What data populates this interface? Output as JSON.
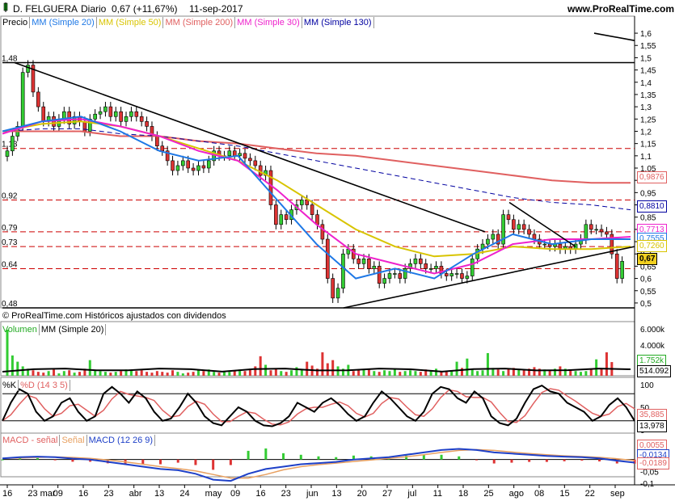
{
  "header": {
    "instrument": "D. FELGUERA",
    "period": "Diario",
    "quote": "0,67 (+11,67%)",
    "date": "11-sep-2017",
    "site": "www.ProRealTime.com"
  },
  "price_panel": {
    "legend": [
      {
        "label": "Precio",
        "color": "#000000"
      },
      {
        "label": "MM (Simple 20)",
        "color": "#1e78e6"
      },
      {
        "label": "MM (Simple 50)",
        "color": "#d8c400"
      },
      {
        "label": "MM (Simple 200)",
        "color": "#e06060"
      },
      {
        "label": "MM (Simple 30)",
        "color": "#ee22cc"
      },
      {
        "label": "MM (Simple 130)",
        "color": "#0000a0"
      }
    ],
    "left_levels": [
      "1,48",
      "1,13",
      "0,92",
      "0,79",
      "0,73",
      "0,64",
      "0,48"
    ],
    "right_ticks": [
      "1,6",
      "1,55",
      "1,5",
      "1,45",
      "1,4",
      "1,35",
      "1,3",
      "1,25",
      "1,2",
      "1,15",
      "1,1",
      "1,05",
      "1",
      "0,95",
      "0,9",
      "0,85",
      "0,8",
      "0,75",
      "0,7",
      "0,65",
      "0,6",
      "0,55",
      "0,5"
    ],
    "value_tags": [
      {
        "text": "0,9876",
        "color": "#e06060"
      },
      {
        "text": "0,8810",
        "color": "#0000a0"
      },
      {
        "text": "0,7713",
        "color": "#ee22cc"
      },
      {
        "text": "0,7555",
        "color": "#1e78e6"
      },
      {
        "text": "0,7260",
        "color": "#d8c400"
      },
      {
        "text": "0,67",
        "color": "#000000"
      }
    ],
    "footer": "© ProRealTime.com Históricos ajustados con dividendos"
  },
  "volume_panel": {
    "legend": [
      {
        "label": "Volumen",
        "color": "#22aa22"
      },
      {
        "label": "MM (Simple 20)",
        "color": "#000000"
      }
    ],
    "right_ticks": [
      "6.000k",
      "4.000k",
      "2.000k"
    ],
    "value_tags": [
      {
        "text": "1.752k",
        "color": "#22aa22"
      },
      {
        "text": "514.092",
        "color": "#000000"
      }
    ]
  },
  "stoch_panel": {
    "legend": [
      {
        "label": "%K",
        "color": "#000000"
      },
      {
        "label": "%D (14 3 5)",
        "color": "#e06060"
      }
    ],
    "right_ticks": [
      "100",
      "50",
      "0"
    ],
    "value_tags": [
      {
        "text": "35,885",
        "color": "#e06060"
      },
      {
        "text": "13,978",
        "color": "#000000"
      }
    ]
  },
  "macd_panel": {
    "legend": [
      {
        "label": "MACD - señal",
        "color": "#e06060"
      },
      {
        "label": "Señal",
        "color": "#e8a060"
      },
      {
        "label": "MACD (12 26 9)",
        "color": "#1e40c8"
      }
    ],
    "right_ticks": [
      "0,05",
      "0",
      "-0,05",
      "-0,1"
    ],
    "value_tags": [
      {
        "text": "0,0055",
        "color": "#e06060"
      },
      {
        "text": "-0,0134",
        "color": "#1e40c8"
      },
      {
        "text": "-0,0189",
        "color": "#e06060"
      }
    ]
  },
  "x_axis": [
    "16",
    "23 mar",
    "09",
    "16",
    "23",
    "abr",
    "13",
    "24",
    "may",
    "09",
    "16",
    "23",
    "jun",
    "13",
    "20",
    "27",
    "jul",
    "11",
    "18",
    "25",
    "ago",
    "08",
    "15",
    "22",
    "sep"
  ],
  "chart_data": {
    "type": "candlestick",
    "title": "D. FELGUERA Diario",
    "date_range": [
      "16-feb-2017",
      "11-sep-2017"
    ],
    "ylim": [
      0.48,
      1.62
    ],
    "last_close": 0.67,
    "horizontal_levels": [
      1.48,
      1.13,
      0.92,
      0.79,
      0.73,
      0.64,
      0.48
    ],
    "close": [
      1.12,
      1.18,
      1.22,
      1.44,
      1.47,
      1.36,
      1.3,
      1.24,
      1.26,
      1.22,
      1.25,
      1.28,
      1.23,
      1.26,
      1.24,
      1.2,
      1.25,
      1.27,
      1.28,
      1.3,
      1.26,
      1.28,
      1.24,
      1.26,
      1.28,
      1.26,
      1.24,
      1.22,
      1.18,
      1.14,
      1.12,
      1.08,
      1.04,
      1.06,
      1.08,
      1.05,
      1.04,
      1.06,
      1.05,
      1.08,
      1.12,
      1.1,
      1.1,
      1.12,
      1.1,
      1.11,
      1.09,
      1.08,
      1.06,
      1.02,
      1.04,
      0.9,
      0.82,
      0.86,
      0.84,
      0.88,
      0.9,
      0.92,
      0.9,
      0.86,
      0.82,
      0.76,
      0.6,
      0.52,
      0.56,
      0.7,
      0.72,
      0.68,
      0.66,
      0.68,
      0.64,
      0.65,
      0.58,
      0.6,
      0.62,
      0.62,
      0.6,
      0.64,
      0.66,
      0.68,
      0.66,
      0.64,
      0.64,
      0.65,
      0.62,
      0.61,
      0.62,
      0.62,
      0.6,
      0.61,
      0.68,
      0.72,
      0.74,
      0.76,
      0.78,
      0.74,
      0.86,
      0.84,
      0.8,
      0.82,
      0.8,
      0.78,
      0.76,
      0.74,
      0.74,
      0.73,
      0.74,
      0.72,
      0.73,
      0.72,
      0.74,
      0.76,
      0.82,
      0.8,
      0.8,
      0.79,
      0.78,
      0.7,
      0.6,
      0.67
    ],
    "series": [
      {
        "name": "MM (Simple 200)",
        "values": [
          1.2,
          1.2,
          1.2,
          1.18,
          1.18,
          1.16,
          1.15,
          1.13,
          1.11,
          1.1,
          1.08,
          1.06,
          1.04,
          1.02,
          1.0,
          0.99,
          0.99
        ]
      },
      {
        "name": "MM (Simple 130)",
        "values": [
          1.2,
          1.21,
          1.21,
          1.19,
          1.18,
          1.16,
          1.14,
          1.11,
          1.08,
          1.05,
          1.02,
          0.99,
          0.96,
          0.93,
          0.91,
          0.9,
          0.88
        ]
      },
      {
        "name": "MM (Simple 50)",
        "values": [
          1.2,
          1.23,
          1.24,
          1.22,
          1.18,
          1.13,
          1.08,
          1.0,
          0.9,
          0.8,
          0.73,
          0.69,
          0.7,
          0.73,
          0.72,
          0.72,
          0.73
        ]
      },
      {
        "name": "MM (Simple 30)",
        "values": [
          1.19,
          1.24,
          1.25,
          1.22,
          1.18,
          1.12,
          1.08,
          0.96,
          0.82,
          0.7,
          0.66,
          0.62,
          0.66,
          0.74,
          0.76,
          0.76,
          0.77
        ]
      },
      {
        "name": "MM (Simple 20)",
        "values": [
          1.2,
          1.24,
          1.26,
          1.2,
          1.12,
          1.08,
          1.1,
          0.92,
          0.74,
          0.6,
          0.64,
          0.6,
          0.7,
          0.78,
          0.74,
          0.76,
          0.76
        ]
      }
    ]
  }
}
